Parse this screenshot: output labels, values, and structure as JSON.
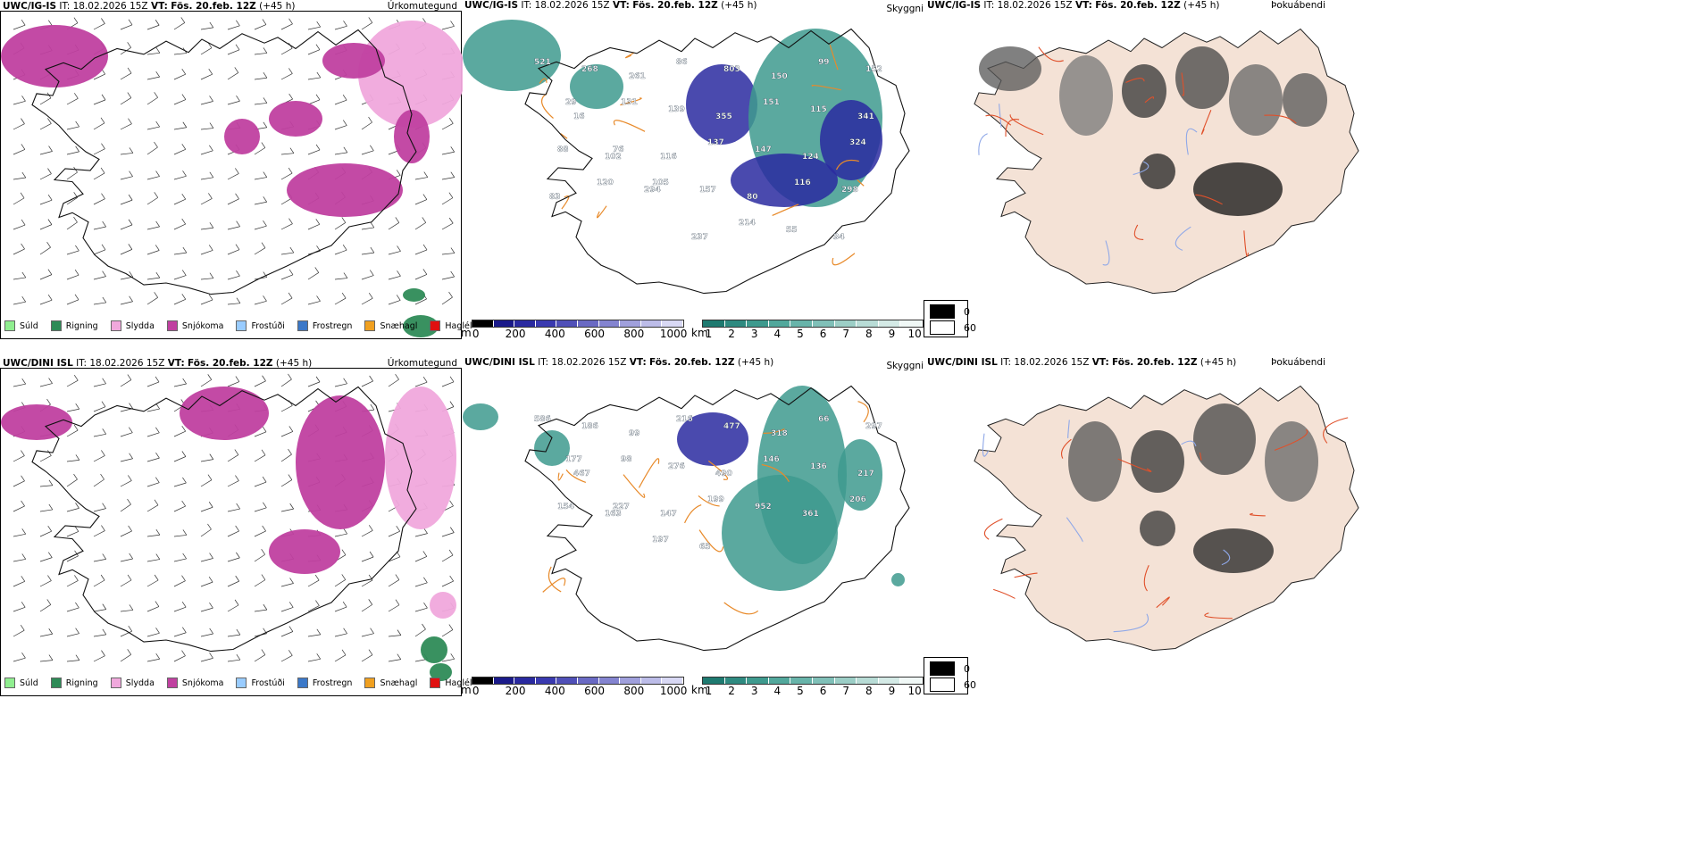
{
  "rows": [
    {
      "model": "UWC/IG-IS",
      "it_label": "IT:",
      "it_value": "18.02.2026 15Z",
      "vt_label": "VT:",
      "vt_value": "Fös. 20.feb. 12Z",
      "lead": "(+45 h)"
    },
    {
      "model": "UWC/DINI ISL",
      "it_label": "IT:",
      "it_value": "18.02.2026 15Z",
      "vt_label": "VT:",
      "vt_value": "Fös. 20.feb. 12Z",
      "lead": "(+45 h)"
    }
  ],
  "panel_titles": {
    "precip": "Úrkomutegund",
    "cloud": "Skyggni",
    "fog": "Þokuábendi"
  },
  "precip_legend": [
    {
      "label": "Súld",
      "color": "#90ee90"
    },
    {
      "label": "Rigning",
      "color": "#2e8b57"
    },
    {
      "label": "Slydda",
      "color": "#f0a8dc"
    },
    {
      "label": "Snjókoma",
      "color": "#c040a0"
    },
    {
      "label": "Frostúði",
      "color": "#99ccff"
    },
    {
      "label": "Frostregn",
      "color": "#3b78c8"
    },
    {
      "label": "Snæhagl",
      "color": "#f0a020"
    },
    {
      "label": "Haglél",
      "color": "#e01010"
    }
  ],
  "colorbar_m": {
    "unit": "m",
    "ticks": [
      "0",
      "200",
      "400",
      "600",
      "800",
      "1000"
    ],
    "colors": [
      "#000000",
      "#1a1a8a",
      "#2a2aa0",
      "#3a3ab0",
      "#5050b8",
      "#6a6ac4",
      "#8484d0",
      "#a0a0dc",
      "#bcbce8",
      "#d8d8f4"
    ]
  },
  "colorbar_km": {
    "unit": "km",
    "ticks": [
      "1",
      "2",
      "3",
      "4",
      "5",
      "6",
      "7",
      "8",
      "9",
      "10"
    ],
    "colors": [
      "#1e7a70",
      "#2e8a80",
      "#3e9a8e",
      "#52a89c",
      "#68b4aa",
      "#80c0b8",
      "#9ccec6",
      "#b8dcd6",
      "#d4eae6",
      "#f0f8f6"
    ]
  },
  "fog_key": {
    "black": "0",
    "white": "60"
  },
  "cloud_labels_top": [
    "521",
    "268",
    "261",
    "86",
    "803",
    "150",
    "99",
    "152",
    "16",
    "131",
    "139",
    "355",
    "151",
    "115",
    "341",
    "29",
    "76",
    "116",
    "137",
    "147",
    "124",
    "324",
    "88",
    "102",
    "105",
    "157",
    "80",
    "116",
    "298",
    "83",
    "120",
    "294",
    "237",
    "214",
    "55",
    "34"
  ],
  "cloud_labels_bottom": [
    "586",
    "186",
    "99",
    "216",
    "477",
    "318",
    "66",
    "297",
    "467",
    "98",
    "276",
    "490",
    "146",
    "136",
    "217",
    "177",
    "227",
    "147",
    "199",
    "952",
    "361",
    "206",
    "154",
    "163",
    "197",
    "65"
  ]
}
